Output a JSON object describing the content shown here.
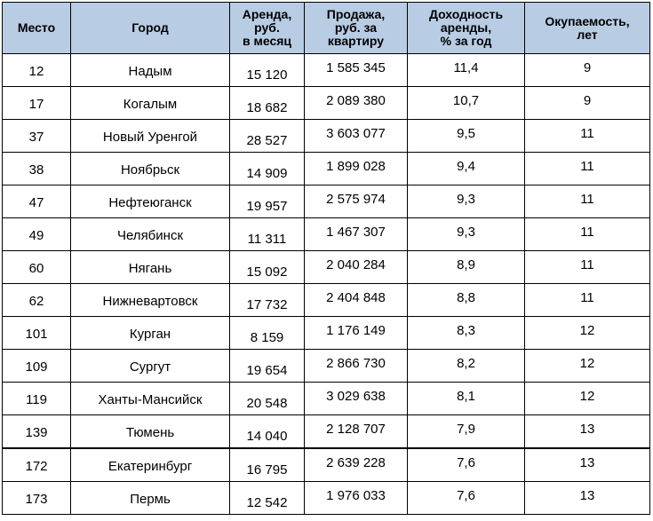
{
  "table": {
    "headers": {
      "rank": "Место",
      "city": "Город",
      "rent": [
        "Аренда,",
        "руб.",
        "в месяц"
      ],
      "price": [
        "Продажа,",
        "руб. за",
        "квартиру"
      ],
      "yield": [
        "Доходность",
        "аренды,",
        "% за год"
      ],
      "payback": [
        "Окупаемость,",
        "лет"
      ]
    },
    "rows": [
      {
        "rank": "12",
        "city": "Надым",
        "rent": "15 120",
        "price": "1 585 345",
        "yield": "11,4",
        "payback": "9"
      },
      {
        "rank": "17",
        "city": "Когалым",
        "rent": "18 682",
        "price": "2 089 380",
        "yield": "10,7",
        "payback": "9"
      },
      {
        "rank": "37",
        "city": "Новый Уренгой",
        "rent": "28 527",
        "price": "3 603 077",
        "yield": "9,5",
        "payback": "11"
      },
      {
        "rank": "38",
        "city": "Ноябрьск",
        "rent": "14 909",
        "price": "1 899 028",
        "yield": "9,4",
        "payback": "11"
      },
      {
        "rank": "47",
        "city": "Нефтеюганск",
        "rent": "19 957",
        "price": "2 575 974",
        "yield": "9,3",
        "payback": "11"
      },
      {
        "rank": "49",
        "city": "Челябинск",
        "rent": "11 311",
        "price": "1 467 307",
        "yield": "9,3",
        "payback": "11"
      },
      {
        "rank": "60",
        "city": "Нягань",
        "rent": "15 092",
        "price": "2 040 284",
        "yield": "8,9",
        "payback": "11"
      },
      {
        "rank": "62",
        "city": "Нижневартовск",
        "rent": "17 732",
        "price": "2 404 848",
        "yield": "8,8",
        "payback": "11"
      },
      {
        "rank": "101",
        "city": "Курган",
        "rent": "8 159",
        "price": "1 176 149",
        "yield": "8,3",
        "payback": "12"
      },
      {
        "rank": "109",
        "city": "Сургут",
        "rent": "19 654",
        "price": "2 866 730",
        "yield": "8,2",
        "payback": "12"
      },
      {
        "rank": "119",
        "city": "Ханты-Мансийск",
        "rent": "20 548",
        "price": "3 029 638",
        "yield": "8,1",
        "payback": "12"
      },
      {
        "rank": "139",
        "city": "Тюмень",
        "rent": "14 040",
        "price": "2 128 707",
        "yield": "7,9",
        "payback": "13"
      },
      {
        "rank": "172",
        "city": "Екатеринбург",
        "rent": "16 795",
        "price": "2 639 228",
        "yield": "7,6",
        "payback": "13"
      },
      {
        "rank": "173",
        "city": "Пермь",
        "rent": "12 542",
        "price": "1 976 033",
        "yield": "7,6",
        "payback": "13"
      }
    ]
  }
}
